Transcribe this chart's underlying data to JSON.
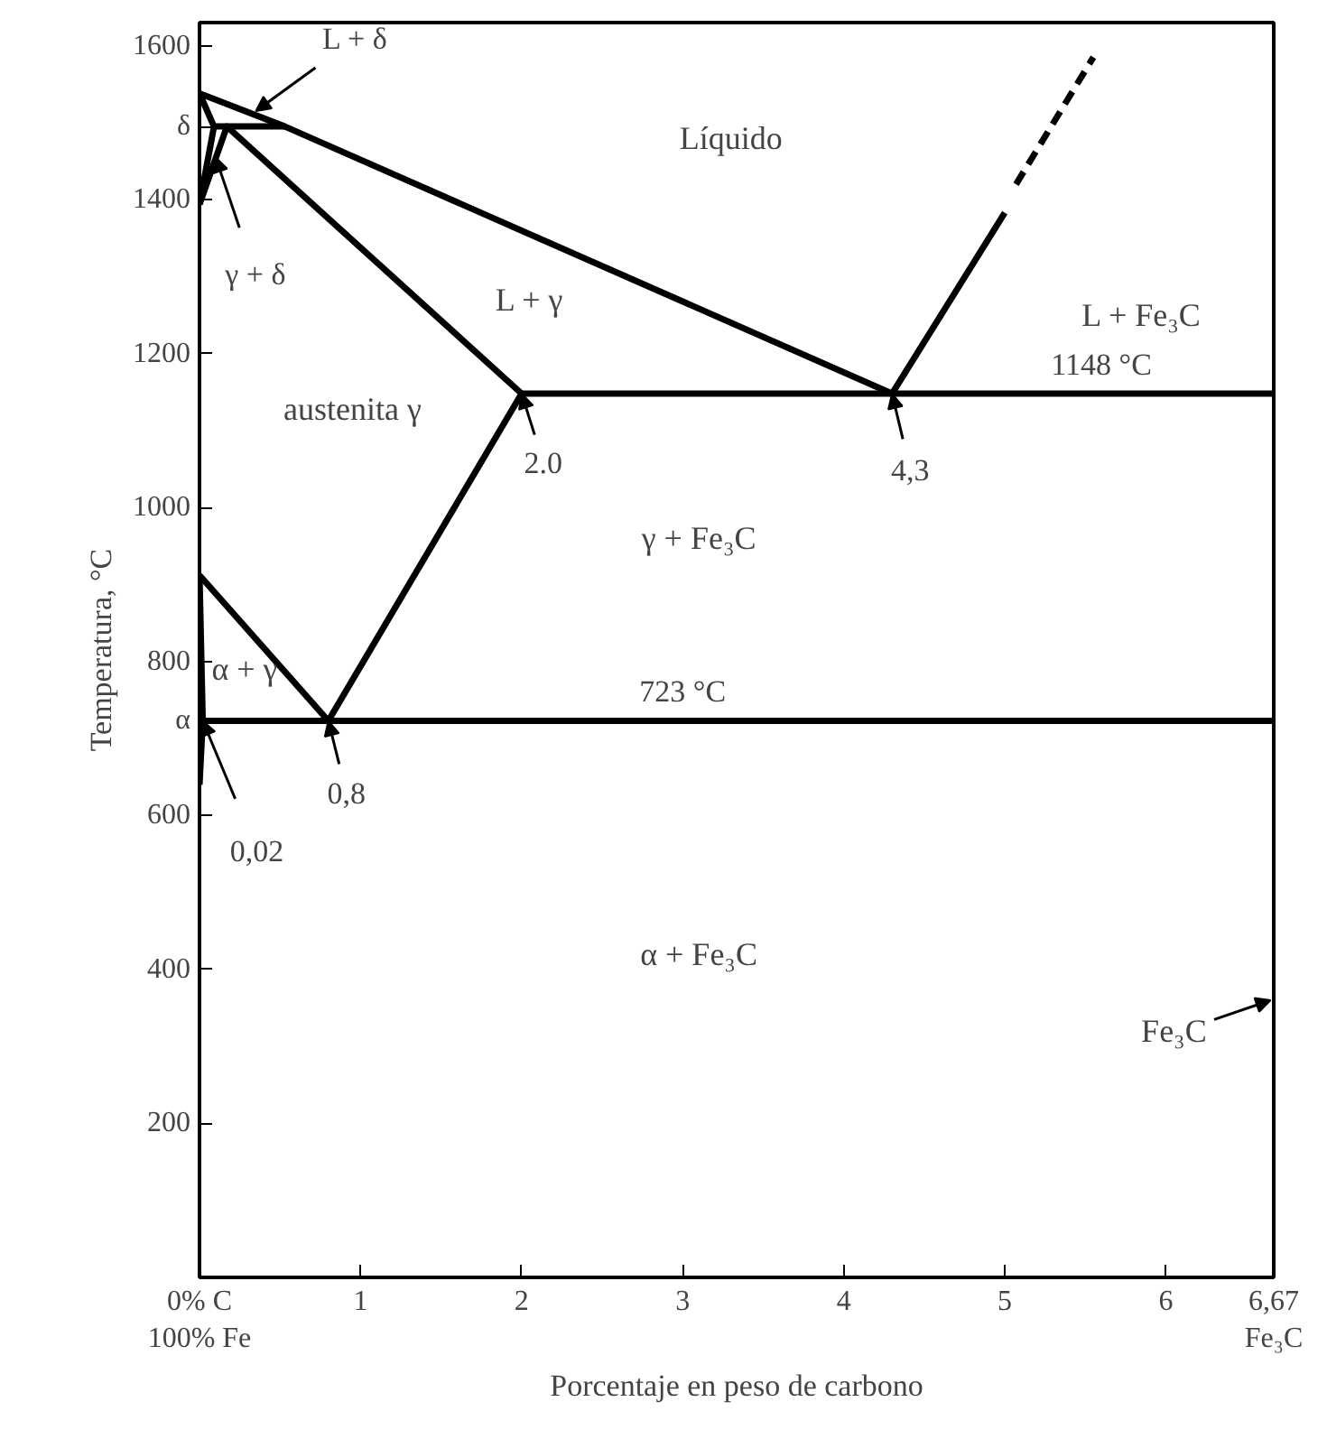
{
  "chart_data": {
    "type": "line",
    "xlabel": "Porcentaje en peso de carbono",
    "ylabel": "Temperatura, °C",
    "xlim": [
      0,
      6.67
    ],
    "ylim": [
      0,
      1630
    ],
    "xticks": [
      {
        "value": 0,
        "label": "0% C\n100% Fe"
      },
      1,
      2,
      3,
      4,
      5,
      6,
      {
        "value": 6.67,
        "label": "6,67\nFe₃C"
      }
    ],
    "yticks": [
      200,
      400,
      600,
      {
        "value": 723,
        "label": "α"
      },
      800,
      1000,
      1200,
      1400,
      {
        "value": 1495,
        "label": "δ"
      },
      1600
    ],
    "grid": false,
    "marker": "none",
    "series": [
      {
        "color": "#000000",
        "x": [
          0,
          0.53,
          4.3
        ],
        "values": [
          1538,
          1495,
          1148
        ]
      },
      {
        "color": "#000000",
        "x": [
          0,
          0.09,
          0.53
        ],
        "values": [
          1538,
          1495,
          1495
        ]
      },
      {
        "color": "#000000",
        "x": [
          0,
          0.09
        ],
        "values": [
          1394,
          1495
        ]
      },
      {
        "color": "#000000",
        "x": [
          0,
          0.17,
          2.0
        ],
        "values": [
          1394,
          1495,
          1148
        ]
      },
      {
        "color": "#000000",
        "x": [
          4.3,
          5.0
        ],
        "values": [
          1148,
          1383
        ]
      },
      {
        "color": "#000000",
        "x": [
          5.07,
          5.55
        ],
        "values": [
          1420,
          1585
        ],
        "line_style": "dashed"
      },
      {
        "color": "#000000",
        "x": [
          2.0,
          6.67
        ],
        "values": [
          1148,
          1148
        ]
      },
      {
        "color": "#000000",
        "x": [
          0.8,
          2.0
        ],
        "values": [
          723,
          1148
        ]
      },
      {
        "color": "#000000",
        "x": [
          0,
          0.8
        ],
        "values": [
          912,
          723
        ]
      },
      {
        "color": "#000000",
        "x": [
          0,
          0.02,
          6.67
        ],
        "values": [
          912,
          723,
          723
        ]
      },
      {
        "color": "#000000",
        "x": [
          0.02,
          0
        ],
        "values": [
          723,
          640
        ]
      }
    ],
    "annotations": [
      {
        "text": "L + δ",
        "x": 0.35,
        "y": 1515
      },
      {
        "text": "γ + δ",
        "x": 0.1,
        "y": 1455
      },
      {
        "text": "2.0",
        "x": 2.0,
        "y": 1148
      },
      {
        "text": "4,3",
        "x": 4.3,
        "y": 1148
      },
      {
        "text": "1148 °C",
        "x": 5.6,
        "y": 1148
      },
      {
        "text": "723 °C",
        "x": 3.0,
        "y": 723
      },
      {
        "text": "0,8",
        "x": 0.8,
        "y": 723
      },
      {
        "text": "0,02",
        "x": 0.02,
        "y": 723
      },
      "Líquido",
      "L + γ",
      "L + Fe₃C",
      "austenita γ",
      "γ + Fe₃C",
      "α + γ",
      "α + Fe₃C",
      "Fe₃C"
    ]
  }
}
